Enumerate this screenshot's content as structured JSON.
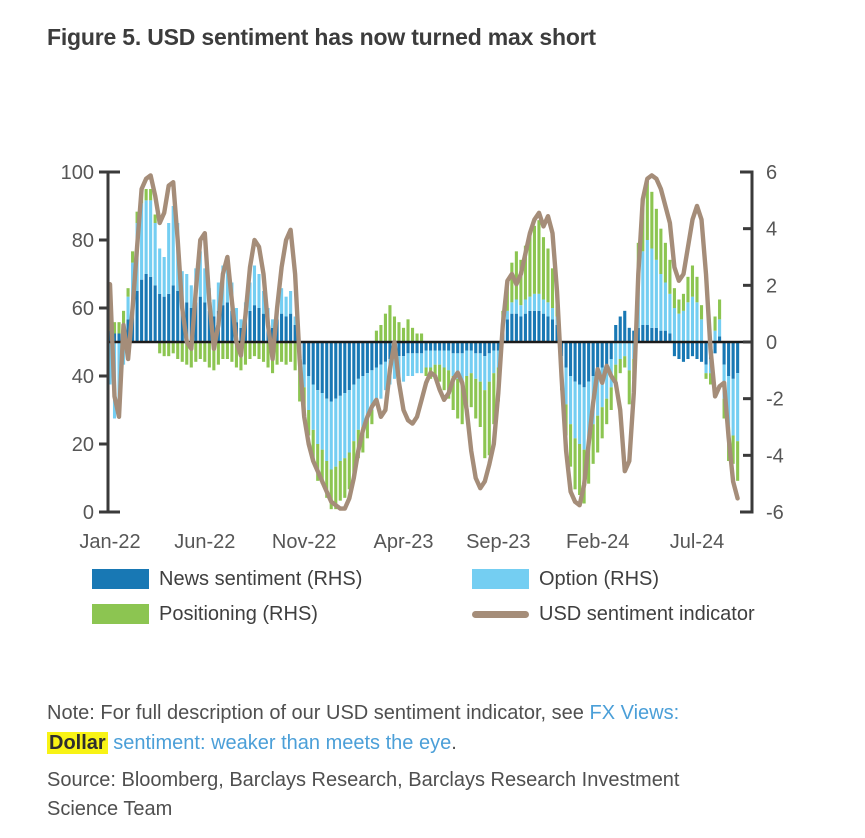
{
  "title": "Figure 5. USD sentiment has now turned max short",
  "legend": {
    "items": [
      {
        "label": "News sentiment (RHS)",
        "color": "#1878b4",
        "type": "bar"
      },
      {
        "label": "Option (RHS)",
        "color": "#74cef2",
        "type": "bar"
      },
      {
        "label": "Positioning (RHS)",
        "color": "#8cc551",
        "type": "bar"
      },
      {
        "label": "USD sentiment indicator",
        "color": "#a58d79",
        "type": "line"
      }
    ]
  },
  "note": {
    "prefix": "Note: For full description of our USD sentiment indicator, see ",
    "link1": "FX Views:",
    "highlight": "Dollar",
    "link2": "sentiment: weaker than meets the eye",
    "suffix": "."
  },
  "source": {
    "line1": "Source: Bloomberg, Barclays Research, Barclays Research Investment",
    "line2": "Science Team"
  },
  "chart_data": {
    "type": "bar+line combo",
    "frequency": "weekly",
    "n_points": 140,
    "x_tick_labels": [
      "Jan-22",
      "Jun-22",
      "Nov-22",
      "Apr-23",
      "Sep-23",
      "Feb-24",
      "Jul-24"
    ],
    "x_tick_indices": [
      0,
      21,
      43,
      65,
      86,
      108,
      130
    ],
    "left_axis": {
      "range": [
        0,
        100
      ],
      "ticks": [
        0,
        20,
        40,
        60,
        80,
        100
      ],
      "used_by": "USD sentiment indicator"
    },
    "right_axis": {
      "range": [
        -6,
        6
      ],
      "ticks": [
        -6,
        -4,
        -2,
        0,
        2,
        4,
        6
      ],
      "used_by": "stacked sentiment component bars"
    },
    "baseline": {
      "left": 50,
      "right": 0
    },
    "colors": {
      "midline": "#1c1c1c",
      "axis": "#3a3a3a",
      "tick_text": "#565656"
    },
    "series": [
      {
        "name": "News sentiment (RHS)",
        "type": "bar",
        "axis": "right",
        "color": "#1878b4",
        "values": [
          0.4,
          0.3,
          0.3,
          0.5,
          0.8,
          1.2,
          1.8,
          2.2,
          2.4,
          2.3,
          2.0,
          1.7,
          1.6,
          1.7,
          2.0,
          1.8,
          1.3,
          1.4,
          1.2,
          1.4,
          1.6,
          1.4,
          1.1,
          0.9,
          1.1,
          1.3,
          1.4,
          1.1,
          0.7,
          0.5,
          0.8,
          1.1,
          1.3,
          1.2,
          1.0,
          0.7,
          0.5,
          0.8,
          1.0,
          0.9,
          1.0,
          0.6,
          -0.4,
          -0.8,
          -1.2,
          -1.5,
          -1.7,
          -1.8,
          -2.0,
          -2.1,
          -2.0,
          -1.9,
          -1.8,
          -1.7,
          -1.5,
          -1.3,
          -1.2,
          -1.1,
          -1.0,
          -0.9,
          -0.8,
          -0.7,
          -0.6,
          -0.5,
          -0.5,
          -0.5,
          -0.4,
          -0.4,
          -0.4,
          -0.4,
          -0.3,
          -0.3,
          -0.3,
          -0.3,
          -0.3,
          -0.3,
          -0.4,
          -0.4,
          -0.4,
          -0.3,
          -0.3,
          -0.4,
          -0.4,
          -0.5,
          -0.4,
          -0.3,
          -0.3,
          0.5,
          0.8,
          1.0,
          1.0,
          0.9,
          1.0,
          1.1,
          1.1,
          1.1,
          1.0,
          0.9,
          0.8,
          0.6,
          -0.5,
          -0.9,
          -1.2,
          -1.4,
          -1.5,
          -1.6,
          -1.4,
          -1.2,
          -1.0,
          -0.9,
          -0.8,
          -0.6,
          0.6,
          0.9,
          1.1,
          0.5,
          0.4,
          0.5,
          0.6,
          0.6,
          0.5,
          0.5,
          0.4,
          0.4,
          0.3,
          -0.5,
          -0.6,
          -0.7,
          -0.6,
          -0.5,
          -0.6,
          -0.7,
          -0.8,
          -0.6,
          -0.4,
          0.2,
          -0.8,
          -1.2,
          -1.3,
          -1.1
        ]
      },
      {
        "name": "Option (RHS)",
        "type": "bar",
        "axis": "right",
        "color": "#74cef2",
        "values": [
          -1.5,
          -2.7,
          -2.2,
          -0.8,
          0.8,
          1.6,
          2.4,
          2.7,
          2.6,
          2.7,
          2.2,
          1.6,
          1.4,
          2.5,
          2.8,
          2.4,
          1.2,
          1.0,
          0.8,
          1.2,
          1.6,
          1.2,
          0.8,
          0.6,
          1.0,
          1.4,
          1.6,
          1.0,
          0.5,
          0.3,
          0.6,
          1.0,
          1.4,
          1.2,
          0.8,
          0.5,
          0.3,
          0.6,
          0.9,
          0.7,
          0.8,
          0.3,
          -0.5,
          -0.8,
          -1.2,
          -1.6,
          -1.9,
          -2.0,
          -2.2,
          -2.4,
          -2.4,
          -2.3,
          -2.3,
          -2.2,
          -2.0,
          -1.8,
          -1.8,
          -1.6,
          -1.4,
          -1.3,
          -1.2,
          -1.0,
          -0.9,
          -0.8,
          -0.8,
          -0.9,
          -0.8,
          -0.8,
          -0.7,
          -0.7,
          -0.6,
          -0.6,
          -0.5,
          -0.5,
          -0.6,
          -0.7,
          -0.8,
          -0.9,
          -1.0,
          -0.9,
          -0.8,
          -0.9,
          -1.0,
          -1.2,
          -1.0,
          -0.8,
          -0.6,
          0.2,
          0.3,
          0.4,
          0.5,
          0.4,
          0.5,
          0.5,
          0.6,
          0.6,
          0.5,
          0.5,
          0.4,
          0.3,
          -0.7,
          -1.3,
          -1.7,
          -2.0,
          -2.1,
          -2.2,
          -2.0,
          -1.7,
          -1.6,
          -1.4,
          -1.2,
          -1.0,
          -0.8,
          -0.6,
          -0.5,
          -1.0,
          -0.6,
          1.8,
          2.6,
          3.0,
          2.8,
          2.4,
          2.0,
          1.7,
          1.4,
          1.2,
          1.0,
          1.1,
          1.4,
          1.6,
          1.4,
          0.8,
          -0.3,
          -0.5,
          0.4,
          0.6,
          -1.2,
          -1.8,
          -2.0,
          -2.4
        ]
      },
      {
        "name": "Positioning (RHS)",
        "type": "bar",
        "axis": "right",
        "color": "#8cc551",
        "values": [
          0.5,
          0.4,
          0.4,
          0.6,
          0.3,
          0.4,
          0.4,
          0.5,
          0.4,
          0.4,
          0.3,
          -0.4,
          -0.5,
          -0.5,
          -0.4,
          -0.6,
          -0.7,
          -0.8,
          -0.9,
          -0.7,
          -0.6,
          -0.7,
          -0.9,
          -1.0,
          -0.8,
          -0.6,
          -0.6,
          -0.7,
          -0.9,
          -1.0,
          -0.8,
          -0.6,
          -0.5,
          -0.6,
          -0.7,
          -0.9,
          -1.1,
          -0.8,
          -0.7,
          -0.8,
          -0.7,
          -1.0,
          -1.2,
          -1.0,
          -0.9,
          -1.1,
          -1.3,
          -1.2,
          -1.3,
          -1.4,
          -1.5,
          -1.4,
          -1.4,
          -1.3,
          -1.2,
          -1.0,
          -0.9,
          -0.7,
          -0.5,
          0.4,
          0.6,
          1.0,
          1.3,
          0.9,
          0.7,
          0.5,
          0.8,
          0.5,
          0.3,
          0.3,
          -0.3,
          -0.4,
          -0.5,
          -0.6,
          -0.8,
          -1.0,
          -1.2,
          -1.4,
          -1.5,
          -1.3,
          -1.2,
          -1.4,
          -1.6,
          -2.4,
          -2.6,
          -1.8,
          -1.2,
          0.4,
          0.9,
          1.4,
          1.7,
          1.6,
          1.9,
          2.2,
          2.4,
          2.6,
          2.2,
          1.9,
          1.4,
          0.9,
          -0.5,
          -1.1,
          -1.5,
          -1.8,
          -1.8,
          -1.9,
          -1.6,
          -1.4,
          -1.3,
          -1.1,
          -0.9,
          -0.8,
          -0.7,
          -0.5,
          -0.4,
          -1.2,
          -0.7,
          1.2,
          1.9,
          2.2,
          2.0,
          1.8,
          1.6,
          1.4,
          1.2,
          0.7,
          0.5,
          0.6,
          0.9,
          1.1,
          0.9,
          0.5,
          -0.2,
          -0.4,
          0.5,
          0.7,
          -0.7,
          -1.2,
          -1.0,
          -1.4
        ]
      },
      {
        "name": "USD sentiment indicator",
        "type": "line",
        "axis": "left",
        "color": "#a58d79",
        "values": [
          67,
          34,
          28,
          55,
          45,
          60,
          78,
          95,
          98,
          99,
          93,
          85,
          88,
          96,
          97,
          80,
          60,
          50,
          48,
          65,
          80,
          82,
          62,
          48,
          55,
          70,
          75,
          62,
          50,
          46,
          58,
          72,
          80,
          78,
          70,
          55,
          45,
          60,
          72,
          80,
          83,
          70,
          45,
          28,
          20,
          15,
          12,
          9,
          6,
          3,
          2,
          1,
          1,
          4,
          10,
          18,
          24,
          28,
          31,
          33,
          28,
          30,
          42,
          50,
          38,
          30,
          27,
          26,
          28,
          33,
          38,
          41,
          40,
          36,
          33,
          35,
          39,
          41,
          38,
          30,
          18,
          10,
          7,
          9,
          14,
          20,
          35,
          55,
          68,
          70,
          67,
          70,
          76,
          82,
          86,
          88,
          84,
          87,
          82,
          65,
          40,
          18,
          6,
          3,
          2,
          8,
          20,
          32,
          42,
          38,
          43,
          40,
          38,
          30,
          12,
          15,
          35,
          70,
          92,
          98,
          99,
          98,
          95,
          90,
          85,
          72,
          68,
          70,
          78,
          86,
          90,
          86,
          70,
          48,
          34,
          37,
          38,
          22,
          9,
          4
        ]
      }
    ]
  }
}
